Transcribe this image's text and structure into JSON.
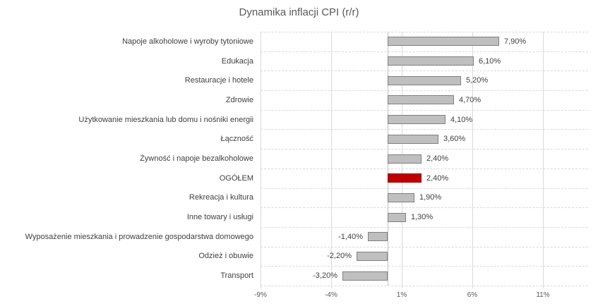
{
  "title": "Dynamika inflacji CPI (r/r)",
  "chart_data": {
    "type": "bar",
    "orientation": "horizontal",
    "title": "Dynamika inflacji CPI (r/r)",
    "categories": [
      "Napoje alkoholowe i wyroby tytoniowe",
      "Edukacja",
      "Restauracje i hotele",
      "Zdrowie",
      "Użytkowanie mieszkania lub domu i nośniki energii",
      "Łączność",
      "Żywność i napoje bezalkoholowe",
      "OGÓŁEM",
      "Rekreacja i kultura",
      "Inne towary i usługi",
      "Wyposażenie mieszkania i prowadzenie gospodarstwa domowego",
      "Odzież i obuwie",
      "Transport"
    ],
    "values": [
      7.9,
      6.1,
      5.2,
      4.7,
      4.1,
      3.6,
      2.4,
      2.4,
      1.9,
      1.3,
      -1.4,
      -2.2,
      -3.2
    ],
    "value_labels": [
      "7,90%",
      "6,10%",
      "5,20%",
      "4,70%",
      "4,10%",
      "3,60%",
      "2,40%",
      "2,40%",
      "1,90%",
      "1,30%",
      "-1,40%",
      "-2,20%",
      "-3,20%"
    ],
    "highlight_category": "OGÓŁEM",
    "highlight_index": 7,
    "xlabel": "",
    "ylabel": "",
    "x_axis": {
      "min": -9,
      "max": 14.2,
      "tick_values": [
        -9,
        -4,
        1,
        6,
        11
      ],
      "tick_labels": [
        "-9%",
        "-4%",
        "1%",
        "6%",
        "11%"
      ],
      "unit": "%"
    },
    "grid": true,
    "legend": false,
    "colors": {
      "bar_fill": "#BFBFBF",
      "bar_border": "#7F7F7F",
      "highlight_fill": "#C00000",
      "highlight_border": "#8E0000",
      "gridline": "#D9D9D9",
      "zero_line": "#BFBFBF",
      "title_text": "#595959",
      "label_text": "#404040",
      "tick_text": "#595959",
      "background": "#FFFFFF"
    }
  }
}
